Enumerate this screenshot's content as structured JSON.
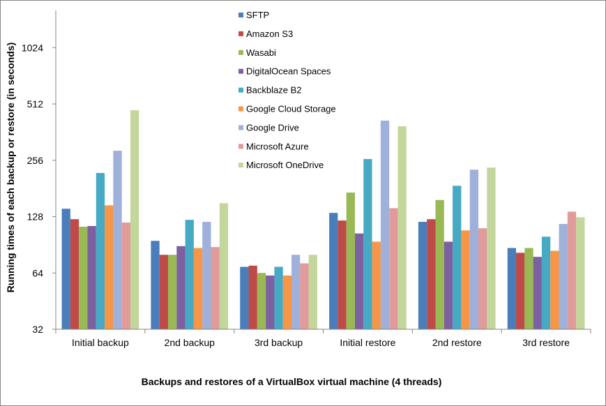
{
  "chart_data": {
    "type": "bar",
    "title": "",
    "xlabel": "Backups and restores of a VirtualBox virtual machine (4 threads)",
    "ylabel": "Running times of each backup or restore (in seconds)",
    "yscale": "log2",
    "ylim": [
      32,
      2048
    ],
    "yticks": [
      32,
      64,
      128,
      256,
      512,
      1024
    ],
    "grid": false,
    "legend_position": "top-center",
    "categories": [
      "Initial backup",
      "2nd backup",
      "3rd backup",
      "Initial restore",
      "2nd restore",
      "3rd restore"
    ],
    "series": [
      {
        "name": "SFTP",
        "color": "#4a7ebb",
        "values": [
          141,
          95,
          69,
          134,
          120,
          87
        ]
      },
      {
        "name": "Amazon S3",
        "color": "#be4b48",
        "values": [
          124,
          80,
          70,
          122,
          124,
          82
        ]
      },
      {
        "name": "Wasabi",
        "color": "#98b954",
        "values": [
          113,
          80,
          64,
          172,
          157,
          87
        ]
      },
      {
        "name": "DigitalOcean Spaces",
        "color": "#7d60a0",
        "values": [
          114,
          89,
          62,
          104,
          94,
          78
        ]
      },
      {
        "name": "Backblaze B2",
        "color": "#46aac5",
        "values": [
          219,
          123,
          69,
          260,
          187,
          100
        ]
      },
      {
        "name": "Google Cloud Storage",
        "color": "#f79646",
        "values": [
          147,
          87,
          62,
          94,
          108,
          84
        ]
      },
      {
        "name": "Google Drive",
        "color": "#9fb0da",
        "values": [
          288,
          120,
          80,
          417,
          228,
          117
        ]
      },
      {
        "name": "Microsoft Azure",
        "color": "#e09b9a",
        "values": [
          119,
          88,
          72,
          142,
          111,
          136
        ]
      },
      {
        "name": "Microsoft OneDrive",
        "color": "#c3d69b",
        "values": [
          474,
          151,
          80,
          389,
          234,
          127
        ]
      }
    ]
  }
}
